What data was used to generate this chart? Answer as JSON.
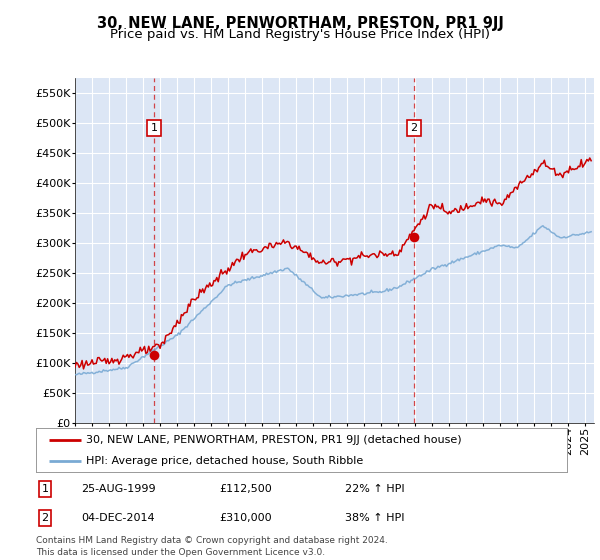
{
  "title": "30, NEW LANE, PENWORTHAM, PRESTON, PR1 9JJ",
  "subtitle": "Price paid vs. HM Land Registry's House Price Index (HPI)",
  "ylim": [
    0,
    575000
  ],
  "yticks": [
    0,
    50000,
    100000,
    150000,
    200000,
    250000,
    300000,
    350000,
    400000,
    450000,
    500000,
    550000
  ],
  "xlim_start": 1995.0,
  "xlim_end": 2025.5,
  "background_color": "#ffffff",
  "plot_bg_color": "#dce6f5",
  "grid_color": "#ffffff",
  "red_line_color": "#cc0000",
  "blue_line_color": "#7aaad4",
  "sale1_year": 1999.646,
  "sale1_price": 112500,
  "sale1_label": "1",
  "sale1_date": "25-AUG-1999",
  "sale1_hpi_pct": "22%",
  "sale2_year": 2014.921,
  "sale2_price": 310000,
  "sale2_label": "2",
  "sale2_date": "04-DEC-2014",
  "sale2_hpi_pct": "38%",
  "legend_line1": "30, NEW LANE, PENWORTHAM, PRESTON, PR1 9JJ (detached house)",
  "legend_line2": "HPI: Average price, detached house, South Ribble",
  "footer": "Contains HM Land Registry data © Crown copyright and database right 2024.\nThis data is licensed under the Open Government Licence v3.0.",
  "title_fontsize": 10.5,
  "subtitle_fontsize": 9.5,
  "tick_fontsize": 8,
  "legend_fontsize": 8,
  "table_fontsize": 8,
  "footer_fontsize": 6.5
}
